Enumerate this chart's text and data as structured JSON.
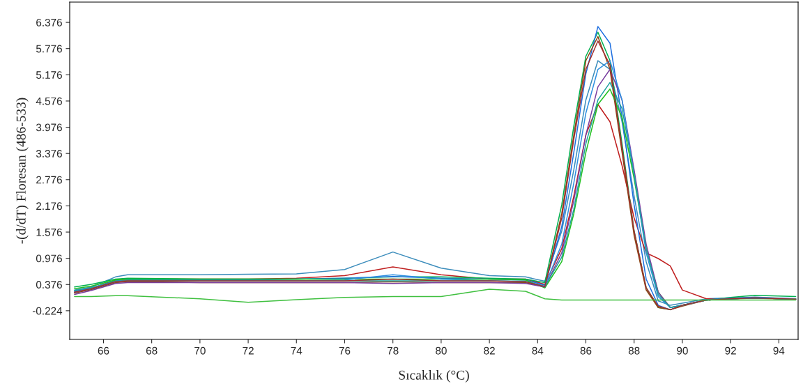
{
  "chart_data": {
    "type": "line",
    "xlabel": "Sıcaklık (°C)",
    "ylabel": "-(d/dT) Floresan (486-533)",
    "x": [
      64.8,
      65.5,
      66.5,
      67,
      70,
      72,
      74,
      76,
      78,
      80,
      82,
      83.5,
      84.3,
      85,
      85.5,
      86,
      86.5,
      87,
      87.5,
      88,
      88.5,
      89,
      89.5,
      90,
      91,
      92,
      93,
      94.7
    ],
    "series": [
      {
        "color": "#3c8dbc",
        "values": [
          0.25,
          0.32,
          0.55,
          0.6,
          0.6,
          0.61,
          0.62,
          0.72,
          1.12,
          0.75,
          0.58,
          0.55,
          0.45,
          1.6,
          3.0,
          4.6,
          5.5,
          5.3,
          4.1,
          2.4,
          0.9,
          0.0,
          -0.1,
          -0.05,
          0.05,
          0.07,
          0.09,
          0.05
        ]
      },
      {
        "color": "#c02020",
        "values": [
          0.2,
          0.28,
          0.48,
          0.5,
          0.5,
          0.5,
          0.52,
          0.58,
          0.78,
          0.6,
          0.5,
          0.5,
          0.38,
          1.2,
          2.4,
          3.8,
          4.5,
          4.1,
          3.1,
          1.9,
          1.1,
          0.97,
          0.8,
          0.25,
          0.05,
          0.05,
          0.06,
          0.04
        ]
      },
      {
        "color": "#00b050",
        "values": [
          0.32,
          0.38,
          0.5,
          0.52,
          0.5,
          0.5,
          0.5,
          0.52,
          0.55,
          0.55,
          0.52,
          0.5,
          0.42,
          2.2,
          4.0,
          5.6,
          6.15,
          5.5,
          3.6,
          1.6,
          0.3,
          -0.15,
          -0.2,
          -0.1,
          0.02,
          0.08,
          0.13,
          0.1
        ]
      },
      {
        "color": "#1e6fe0",
        "values": [
          0.22,
          0.3,
          0.46,
          0.48,
          0.48,
          0.48,
          0.5,
          0.52,
          0.56,
          0.52,
          0.5,
          0.48,
          0.36,
          1.7,
          3.4,
          5.2,
          6.28,
          5.9,
          4.2,
          2.2,
          0.5,
          -0.1,
          -0.2,
          -0.1,
          0.03,
          0.06,
          0.08,
          0.05
        ]
      },
      {
        "color": "#8b4513",
        "values": [
          0.18,
          0.26,
          0.42,
          0.44,
          0.42,
          0.42,
          0.42,
          0.42,
          0.44,
          0.42,
          0.42,
          0.42,
          0.32,
          2.0,
          3.8,
          5.5,
          6.05,
          5.3,
          3.4,
          1.5,
          0.25,
          -0.15,
          -0.2,
          -0.12,
          0.02,
          0.05,
          0.07,
          0.04
        ]
      },
      {
        "color": "#20c020",
        "values": [
          0.28,
          0.34,
          0.48,
          0.5,
          0.5,
          0.5,
          0.5,
          0.5,
          0.5,
          0.5,
          0.5,
          0.48,
          0.3,
          0.9,
          2.0,
          3.4,
          4.5,
          4.85,
          4.2,
          2.8,
          1.2,
          0.2,
          -0.15,
          -0.1,
          0.02,
          0.05,
          0.07,
          0.04
        ]
      },
      {
        "color": "#7a3fa0",
        "values": [
          0.15,
          0.24,
          0.4,
          0.42,
          0.42,
          0.42,
          0.42,
          0.42,
          0.4,
          0.42,
          0.42,
          0.4,
          0.32,
          1.1,
          2.3,
          3.8,
          4.9,
          5.3,
          4.6,
          3.0,
          1.3,
          0.2,
          -0.15,
          -0.1,
          0.02,
          0.05,
          0.07,
          0.04
        ]
      },
      {
        "color": "#3090e0",
        "values": [
          0.2,
          0.28,
          0.44,
          0.46,
          0.46,
          0.46,
          0.46,
          0.48,
          0.6,
          0.5,
          0.46,
          0.44,
          0.34,
          1.3,
          2.7,
          4.3,
          5.3,
          5.5,
          4.6,
          2.9,
          1.1,
          0.1,
          -0.15,
          -0.1,
          0.02,
          0.05,
          0.07,
          0.04
        ]
      },
      {
        "color": "#20a0a0",
        "values": [
          0.24,
          0.3,
          0.45,
          0.47,
          0.46,
          0.46,
          0.46,
          0.46,
          0.46,
          0.46,
          0.46,
          0.45,
          0.33,
          1.0,
          2.1,
          3.6,
          4.6,
          5.0,
          4.4,
          2.9,
          1.2,
          0.15,
          -0.15,
          -0.1,
          0.02,
          0.05,
          0.07,
          0.04
        ]
      },
      {
        "color": "#a03030",
        "values": [
          0.2,
          0.28,
          0.44,
          0.46,
          0.46,
          0.46,
          0.46,
          0.46,
          0.5,
          0.46,
          0.46,
          0.44,
          0.33,
          1.9,
          3.7,
          5.3,
          5.95,
          5.4,
          3.5,
          1.6,
          0.3,
          -0.12,
          -0.2,
          -0.1,
          0.02,
          0.05,
          0.07,
          0.04
        ]
      },
      {
        "color": "#40c040",
        "values": [
          0.1,
          0.1,
          0.12,
          0.12,
          0.05,
          -0.03,
          0.03,
          0.08,
          0.1,
          0.1,
          0.27,
          0.22,
          0.05,
          0.02,
          0.02,
          0.02,
          0.02,
          0.02,
          0.02,
          0.02,
          0.02,
          0.02,
          0.02,
          0.02,
          0.02,
          0.02,
          0.02,
          0.02
        ]
      }
    ],
    "xlim": [
      64.6,
      94.8
    ],
    "ylim": [
      -0.88,
      6.84
    ],
    "xticks": [
      66,
      68,
      70,
      72,
      74,
      76,
      78,
      80,
      82,
      84,
      86,
      88,
      90,
      92,
      94
    ],
    "yticks": [
      -0.224,
      0.376,
      0.976,
      1.576,
      2.176,
      2.776,
      3.376,
      3.976,
      4.576,
      5.176,
      5.776,
      6.376
    ],
    "grid": false,
    "legend": false,
    "marker": "none",
    "line_style": "solid"
  }
}
